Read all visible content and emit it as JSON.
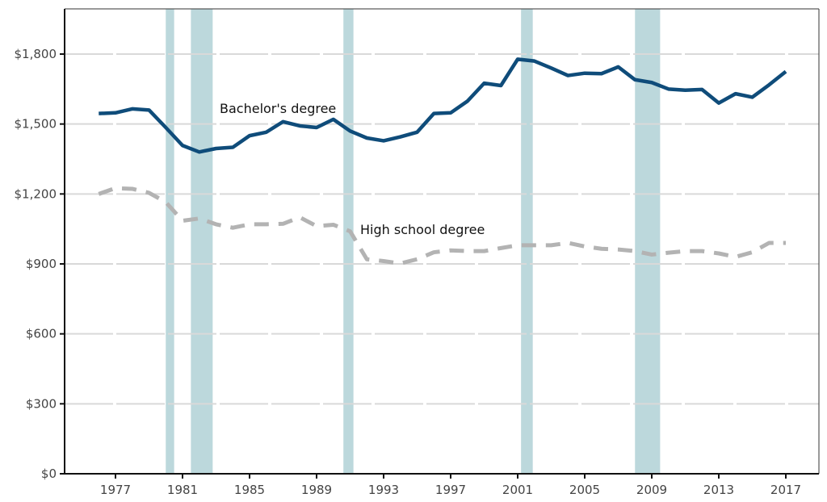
{
  "chart_data": {
    "type": "line",
    "title": "",
    "xlabel": "",
    "ylabel": "",
    "xlim": [
      1974,
      2019
    ],
    "ylim": [
      0,
      2000
    ],
    "grid": true,
    "x_ticks": [
      1977,
      1981,
      1985,
      1989,
      1993,
      1997,
      2001,
      2005,
      2009,
      2013,
      2017
    ],
    "x_tick_labels": [
      "1977",
      "1981",
      "1985",
      "1989",
      "1993",
      "1997",
      "2001",
      "2005",
      "2009",
      "2013",
      "2017"
    ],
    "y_ticks": [
      0,
      300,
      600,
      900,
      1200,
      1500,
      1800
    ],
    "y_tick_labels": [
      "$0",
      "$300",
      "$600",
      "$900",
      "$1,200",
      "$1,500",
      "$1,800"
    ],
    "x": [
      1976,
      1977,
      1978,
      1979,
      1980,
      1981,
      1982,
      1983,
      1984,
      1985,
      1986,
      1987,
      1988,
      1989,
      1990,
      1991,
      1992,
      1993,
      1994,
      1995,
      1996,
      1997,
      1998,
      1999,
      2000,
      2001,
      2002,
      2003,
      2004,
      2005,
      2006,
      2007,
      2008,
      2009,
      2010,
      2011,
      2012,
      2013,
      2014,
      2015,
      2016,
      2017
    ],
    "series": [
      {
        "name": "Bachelor's degree",
        "style": "solid",
        "color": "#0f4c7a",
        "values": [
          1545,
          1548,
          1565,
          1560,
          1485,
          1408,
          1380,
          1395,
          1400,
          1450,
          1465,
          1510,
          1492,
          1485,
          1520,
          1470,
          1440,
          1428,
          1445,
          1465,
          1545,
          1548,
          1598,
          1675,
          1665,
          1778,
          1770,
          1740,
          1708,
          1718,
          1716,
          1745,
          1690,
          1678,
          1650,
          1645,
          1648,
          1590,
          1630,
          1615,
          1668,
          1725
        ]
      },
      {
        "name": "High school degree",
        "style": "dashed",
        "color": "#b3b3b3",
        "values": [
          1200,
          1225,
          1222,
          1205,
          1165,
          1085,
          1095,
          1070,
          1055,
          1070,
          1070,
          1072,
          1100,
          1062,
          1068,
          1040,
          920,
          912,
          902,
          920,
          950,
          958,
          955,
          955,
          968,
          980,
          980,
          980,
          990,
          975,
          965,
          962,
          955,
          940,
          948,
          955,
          955,
          945,
          930,
          950,
          990,
          990
        ]
      }
    ],
    "annotations": [
      {
        "text": "Bachelor's degree",
        "series": 0
      },
      {
        "text": "High school degree",
        "series": 1
      }
    ],
    "shaded_periods": [
      {
        "start": 1980.0,
        "end": 1980.5
      },
      {
        "start": 1981.5,
        "end": 1982.8
      },
      {
        "start": 1990.6,
        "end": 1991.2
      },
      {
        "start": 2001.2,
        "end": 2001.9
      },
      {
        "start": 2008.0,
        "end": 2009.5
      }
    ],
    "shade_color": "#bcd8dc",
    "legend": "none"
  }
}
